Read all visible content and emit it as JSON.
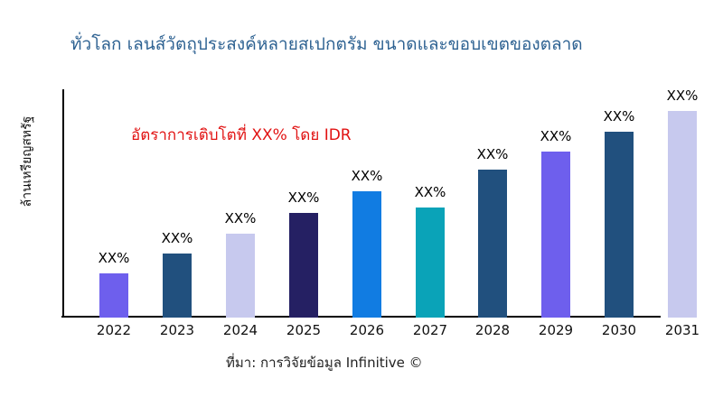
{
  "colors": {
    "title": "#2e6292",
    "annotation": "#e11212",
    "axis": "#000000",
    "tick_text": "#111111",
    "violet": "#6e5fed",
    "steel_blue": "#21507e",
    "lavender": "#c7c9ee",
    "navy": "#252063",
    "bright_blue": "#117ce2",
    "teal": "#0aa3b8"
  },
  "chart_data": {
    "type": "bar",
    "title": "ทั่วโลก เลนส์วัตถุประสงค์หลายสเปกตรัม ขนาดและขอบเขตของตลาด",
    "ylabel": "ล้านเหรียญสหรัฐ",
    "xlabel": "",
    "annotation": "อัตราการเติบโตที่ XX% โดย IDR",
    "source": "ที่มา: การวิจัยข้อมูล Infinitive ©",
    "categories": [
      "2022",
      "2023",
      "2024",
      "2025",
      "2026",
      "2027",
      "2028",
      "2029",
      "2030",
      "2031"
    ],
    "relative_values": [
      49,
      71,
      93,
      116,
      140,
      122,
      164,
      184,
      206,
      229
    ],
    "bar_labels": [
      "XX%",
      "XX%",
      "XX%",
      "XX%",
      "XX%",
      "XX%",
      "XX%",
      "XX%",
      "XX%",
      "XX%"
    ],
    "bar_colors": [
      "#6e5fed",
      "#21507e",
      "#c7c9ee",
      "#252063",
      "#117ce2",
      "#0aa3b8",
      "#21507e",
      "#6e5fed",
      "#21507e",
      "#c7c9ee"
    ],
    "ylim": null,
    "grid": false,
    "legend": false,
    "note": "No numeric y-axis ticks shown; bar values are XX% placeholders, heights are relative units read from pixels"
  }
}
